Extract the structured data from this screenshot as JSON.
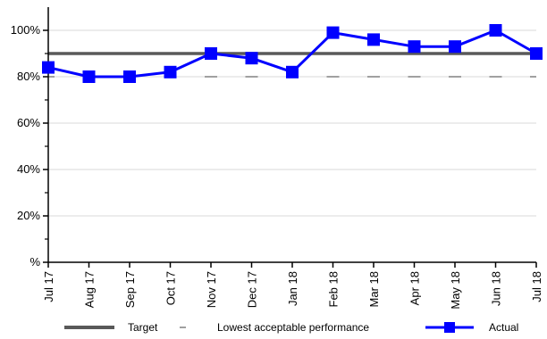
{
  "chart_data": {
    "type": "line",
    "categories": [
      "Jul 17",
      "Aug 17",
      "Sep 17",
      "Oct 17",
      "Nov 17",
      "Dec 17",
      "Jan 18",
      "Feb 18",
      "Mar 18",
      "Apr 18",
      "May 18",
      "Jun 18",
      "Jul 18"
    ],
    "ylim": [
      0,
      110
    ],
    "y_ticks": [
      0,
      20,
      40,
      60,
      80,
      100
    ],
    "y_tick_labels": [
      "%",
      "20%",
      "40%",
      "60%",
      "80%",
      "100%"
    ],
    "series": [
      {
        "name": "Target",
        "values": [
          90,
          90,
          90,
          90,
          90,
          90,
          90,
          90,
          90,
          90,
          90,
          90,
          90
        ],
        "color": "#595959",
        "style": "solid"
      },
      {
        "name": "Lowest acceptable performance",
        "values": [
          80,
          80,
          80,
          80,
          80,
          80,
          80,
          80,
          80,
          80,
          80,
          80,
          80
        ],
        "color": "#808080",
        "style": "dashed"
      },
      {
        "name": "Actual",
        "values": [
          84,
          80,
          80,
          82,
          90,
          88,
          82,
          99,
          96,
          93,
          93,
          100,
          90
        ],
        "color": "#0000ff",
        "marker": "square"
      }
    ],
    "grid": true,
    "legend_position": "bottom"
  }
}
